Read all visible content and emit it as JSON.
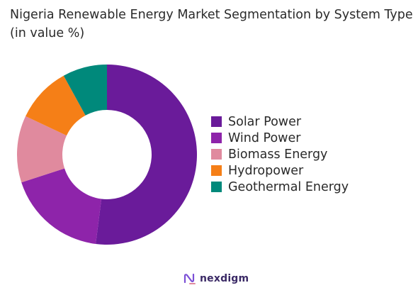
{
  "chart_data": {
    "type": "pie",
    "subtype": "donut",
    "title": "Nigeria Renewable Energy  Market Segmentation by System Type (in value %)",
    "categories": [
      "Solar Power",
      "Wind Power",
      "Biomass Energy",
      "Hydropower",
      "Geothermal Energy"
    ],
    "values": [
      52,
      18,
      12,
      10,
      8
    ],
    "colors": [
      "#6a1b9a",
      "#8e24aa",
      "#e08a9e",
      "#f57f17",
      "#00897b"
    ],
    "legend_position": "right",
    "start_angle_deg": 0,
    "direction": "clockwise"
  },
  "brand": {
    "name": "nexdigm",
    "color": "#3b2a66",
    "icon": "nexdigm-logo-icon"
  }
}
